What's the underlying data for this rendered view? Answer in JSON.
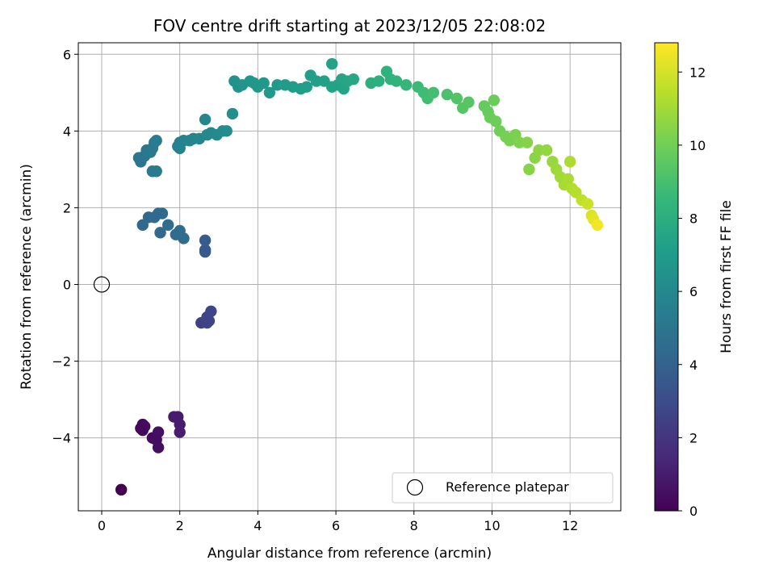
{
  "chart_data": {
    "type": "scatter",
    "title": "FOV centre drift starting at 2023/12/05 22:08:02",
    "xlabel": "Angular distance from reference (arcmin)",
    "ylabel": "Rotation from reference (arcmin)",
    "xlim": [
      -0.6,
      13.3
    ],
    "ylim": [
      -5.9,
      6.3
    ],
    "xticks": [
      0,
      2,
      4,
      6,
      8,
      10,
      12
    ],
    "yticks": [
      -4,
      -2,
      0,
      2,
      4,
      6
    ],
    "grid": true,
    "colormap": "viridis",
    "colorbar": {
      "label": "Hours from first FF file",
      "range": [
        0,
        12.8
      ],
      "ticks": [
        0,
        2,
        4,
        6,
        8,
        10,
        12
      ]
    },
    "legend": {
      "position": "bottom-right",
      "entries": [
        {
          "label": "Reference platepar",
          "marker": "open-circle"
        }
      ]
    },
    "reference_point": {
      "x": 0,
      "y": 0
    },
    "points": [
      [
        0.5,
        -5.35,
        0.0
      ],
      [
        1.05,
        -3.65,
        0.3
      ],
      [
        1.05,
        -3.8,
        0.3
      ],
      [
        1.1,
        -3.7,
        0.35
      ],
      [
        1.0,
        -3.75,
        0.3
      ],
      [
        1.3,
        -4.0,
        0.4
      ],
      [
        1.4,
        -4.05,
        0.45
      ],
      [
        1.45,
        -4.25,
        0.5
      ],
      [
        1.45,
        -3.85,
        0.5
      ],
      [
        1.85,
        -3.45,
        0.9
      ],
      [
        1.95,
        -3.45,
        0.95
      ],
      [
        2.0,
        -3.65,
        1.0
      ],
      [
        2.0,
        -3.85,
        1.05
      ],
      [
        2.55,
        -1.0,
        2.5
      ],
      [
        2.7,
        -1.0,
        2.6
      ],
      [
        2.75,
        -0.95,
        2.6
      ],
      [
        2.7,
        -0.85,
        2.65
      ],
      [
        2.8,
        -0.7,
        2.7
      ],
      [
        2.65,
        0.85,
        3.6
      ],
      [
        2.65,
        0.9,
        3.6
      ],
      [
        2.65,
        1.15,
        3.7
      ],
      [
        1.05,
        1.55,
        4.3
      ],
      [
        1.2,
        1.75,
        4.3
      ],
      [
        1.35,
        1.75,
        4.35
      ],
      [
        1.45,
        1.85,
        4.4
      ],
      [
        1.55,
        1.85,
        4.4
      ],
      [
        1.5,
        1.35,
        4.45
      ],
      [
        1.7,
        1.55,
        4.5
      ],
      [
        1.9,
        1.3,
        4.5
      ],
      [
        2.0,
        1.4,
        4.55
      ],
      [
        2.1,
        1.2,
        4.55
      ],
      [
        0.95,
        3.3,
        5.0
      ],
      [
        1.0,
        3.2,
        5.0
      ],
      [
        1.1,
        3.35,
        5.05
      ],
      [
        1.15,
        3.5,
        5.1
      ],
      [
        1.25,
        3.45,
        5.15
      ],
      [
        1.3,
        3.55,
        5.2
      ],
      [
        1.35,
        3.7,
        5.25
      ],
      [
        1.4,
        3.75,
        5.3
      ],
      [
        1.3,
        2.95,
        5.3
      ],
      [
        1.4,
        2.95,
        5.35
      ],
      [
        1.95,
        3.6,
        5.6
      ],
      [
        2.0,
        3.7,
        5.65
      ],
      [
        2.0,
        3.55,
        5.7
      ],
      [
        2.1,
        3.75,
        5.75
      ],
      [
        2.25,
        3.75,
        5.8
      ],
      [
        2.35,
        3.8,
        5.85
      ],
      [
        2.5,
        3.8,
        5.9
      ],
      [
        2.65,
        4.3,
        5.95
      ],
      [
        2.7,
        3.9,
        6.0
      ],
      [
        2.8,
        3.95,
        6.05
      ],
      [
        2.95,
        3.9,
        6.1
      ],
      [
        3.1,
        4.0,
        6.15
      ],
      [
        3.2,
        4.0,
        6.2
      ],
      [
        3.35,
        4.45,
        6.3
      ],
      [
        3.4,
        5.3,
        6.5
      ],
      [
        3.5,
        5.15,
        6.55
      ],
      [
        3.6,
        5.2,
        6.6
      ],
      [
        3.8,
        5.3,
        6.7
      ],
      [
        3.9,
        5.25,
        6.75
      ],
      [
        4.0,
        5.15,
        6.8
      ],
      [
        4.15,
        5.25,
        6.85
      ],
      [
        4.3,
        5.0,
        6.9
      ],
      [
        4.5,
        5.2,
        6.95
      ],
      [
        4.7,
        5.2,
        7.0
      ],
      [
        4.9,
        5.15,
        7.05
      ],
      [
        5.1,
        5.1,
        7.1
      ],
      [
        5.25,
        5.15,
        7.15
      ],
      [
        5.35,
        5.45,
        7.2
      ],
      [
        5.5,
        5.3,
        7.25
      ],
      [
        5.7,
        5.3,
        7.3
      ],
      [
        5.9,
        5.15,
        7.35
      ],
      [
        5.9,
        5.75,
        7.35
      ],
      [
        6.05,
        5.2,
        7.4
      ],
      [
        6.2,
        5.1,
        7.45
      ],
      [
        6.15,
        5.35,
        7.5
      ],
      [
        6.3,
        5.3,
        7.55
      ],
      [
        6.45,
        5.35,
        7.6
      ],
      [
        6.9,
        5.25,
        8.0
      ],
      [
        7.1,
        5.3,
        8.1
      ],
      [
        7.3,
        5.55,
        8.2
      ],
      [
        7.4,
        5.35,
        8.25
      ],
      [
        7.55,
        5.3,
        8.3
      ],
      [
        7.8,
        5.2,
        8.5
      ],
      [
        8.1,
        5.15,
        8.7
      ],
      [
        8.25,
        5.0,
        8.8
      ],
      [
        8.35,
        4.85,
        8.85
      ],
      [
        8.5,
        5.0,
        8.9
      ],
      [
        8.85,
        4.95,
        9.1
      ],
      [
        9.1,
        4.85,
        9.3
      ],
      [
        9.25,
        4.6,
        9.35
      ],
      [
        9.4,
        4.75,
        9.4
      ],
      [
        9.8,
        4.65,
        9.7
      ],
      [
        9.9,
        4.5,
        9.75
      ],
      [
        9.95,
        4.35,
        9.8
      ],
      [
        10.05,
        4.8,
        9.85
      ],
      [
        10.1,
        4.25,
        9.9
      ],
      [
        10.2,
        4.0,
        10.0
      ],
      [
        10.35,
        3.85,
        10.1
      ],
      [
        10.45,
        3.75,
        10.15
      ],
      [
        10.6,
        3.9,
        10.2
      ],
      [
        10.7,
        3.7,
        10.3
      ],
      [
        10.9,
        3.7,
        10.4
      ],
      [
        10.95,
        3.0,
        10.45
      ],
      [
        11.1,
        3.3,
        10.5
      ],
      [
        11.2,
        3.5,
        10.6
      ],
      [
        11.4,
        3.5,
        10.7
      ],
      [
        11.55,
        3.2,
        10.8
      ],
      [
        11.65,
        3.0,
        10.9
      ],
      [
        11.75,
        2.8,
        11.0
      ],
      [
        11.85,
        2.6,
        11.1
      ],
      [
        11.95,
        2.75,
        11.15
      ],
      [
        12.0,
        3.2,
        11.2
      ],
      [
        12.05,
        2.5,
        11.3
      ],
      [
        12.15,
        2.4,
        11.4
      ],
      [
        12.3,
        2.2,
        11.6
      ],
      [
        12.45,
        2.1,
        11.8
      ],
      [
        12.55,
        1.8,
        12.1
      ],
      [
        12.6,
        1.7,
        12.3
      ],
      [
        12.7,
        1.55,
        12.6
      ]
    ]
  }
}
